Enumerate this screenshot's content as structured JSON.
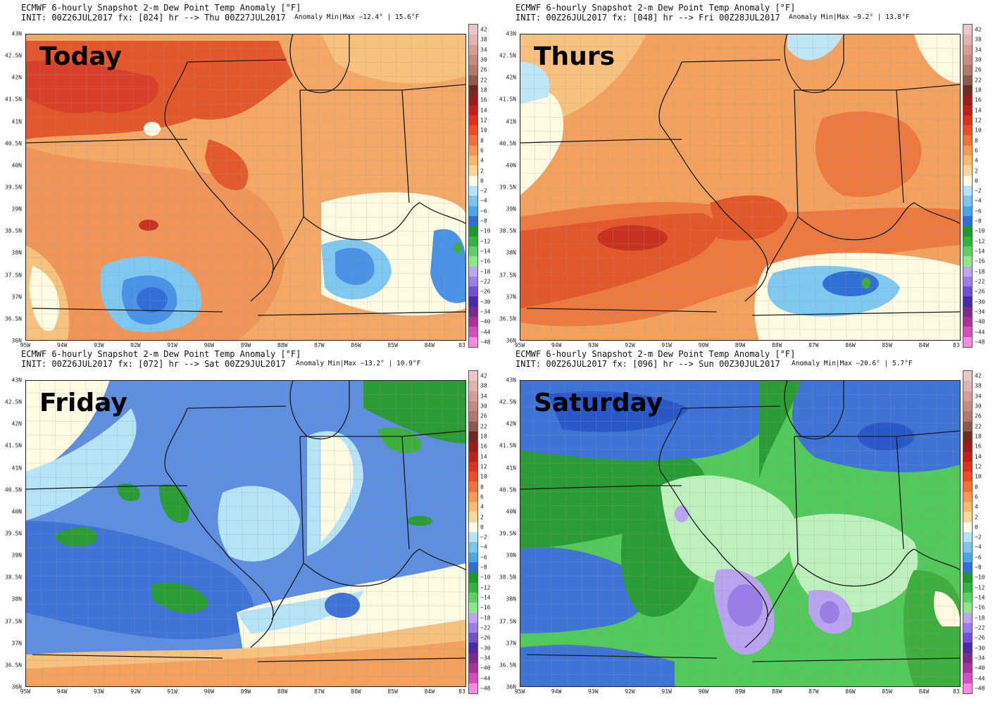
{
  "panels": [
    {
      "key": "p0",
      "line1": "ECMWF 6-hourly Snapshot 2-m Dew Point Temp Anomaly [°F]",
      "line2": "INIT: 00Z26JUL2017 fx: [024] hr --> Thu 00Z27JUL2017",
      "minmax": "Anomaly Min|Max −12.4° | 15.6°F",
      "label": "Today",
      "theme": "warm",
      "base_color": "#f2a25e"
    },
    {
      "key": "p1",
      "line1": "ECMWF 6-hourly Snapshot 2-m Dew Point Temp Anomaly [°F]",
      "line2": "INIT: 00Z26JUL2017 fx: [048] hr --> Fri 00Z28JUL2017",
      "minmax": "Anomaly Min|Max −9.2° | 13.8°F",
      "label": "Thurs",
      "theme": "hot",
      "base_color": "#f2a25e"
    },
    {
      "key": "p2",
      "line1": "ECMWF 6-hourly Snapshot 2-m Dew Point Temp Anomaly [°F]",
      "line2": "INIT: 00Z26JUL2017 fx: [072] hr --> Sat 00Z29JUL2017",
      "minmax": "Anomaly Min|Max −13.2° | 10.9°F",
      "label": "Friday",
      "theme": "cool",
      "base_color": "#5d8ee0"
    },
    {
      "key": "p3",
      "line1": "ECMWF 6-hourly Snapshot 2-m Dew Point Temp Anomaly [°F]",
      "line2": "INIT: 00Z26JUL2017 fx: [096] hr --> Sun 00Z30JUL2017",
      "minmax": "Anomaly Min|Max −20.6° | 5.7°F",
      "label": "Saturday",
      "theme": "cold",
      "base_color": "#3fbf4a"
    }
  ],
  "lat_labels": [
    "43N",
    "42.5N",
    "42N",
    "41.5N",
    "41N",
    "40.5N",
    "40N",
    "39.5N",
    "39N",
    "38.5N",
    "38N",
    "37.5N",
    "37N",
    "36.5N",
    "36N"
  ],
  "lon_labels": [
    "95W",
    "94W",
    "93W",
    "92W",
    "91W",
    "90W",
    "89W",
    "88W",
    "87W",
    "86W",
    "85W",
    "84W",
    "83"
  ],
  "colorbar": {
    "labels": [
      "42",
      "38",
      "34",
      "30",
      "26",
      "22",
      "18",
      "16",
      "14",
      "12",
      "10",
      "8",
      "6",
      "4",
      "2",
      "0",
      "−2",
      "−4",
      "−6",
      "−8",
      "−10",
      "−12",
      "−14",
      "−16",
      "−18",
      "−22",
      "−26",
      "−30",
      "−34",
      "−40",
      "−44",
      "−48"
    ],
    "colors": [
      "#e8c7c7",
      "#dfb3b0",
      "#d49d98",
      "#c68a80",
      "#b3786d",
      "#8a5a4f",
      "#6f2a22",
      "#9b1d1a",
      "#c21f1a",
      "#e0301f",
      "#ee4b26",
      "#f2713a",
      "#f59a50",
      "#f7bb6a",
      "#f9d79a",
      "#fffde6",
      "#b5e3f7",
      "#7cc6ee",
      "#4aa5ea",
      "#2f6fd6",
      "#1f9a2a",
      "#33b43c",
      "#5fd064",
      "#8fe68f",
      "#bfa5f0",
      "#9a7de6",
      "#6f52d4",
      "#4b2aa8",
      "#7a2b8e",
      "#a8339b",
      "#d24fbf",
      "#f08fe0"
    ]
  }
}
